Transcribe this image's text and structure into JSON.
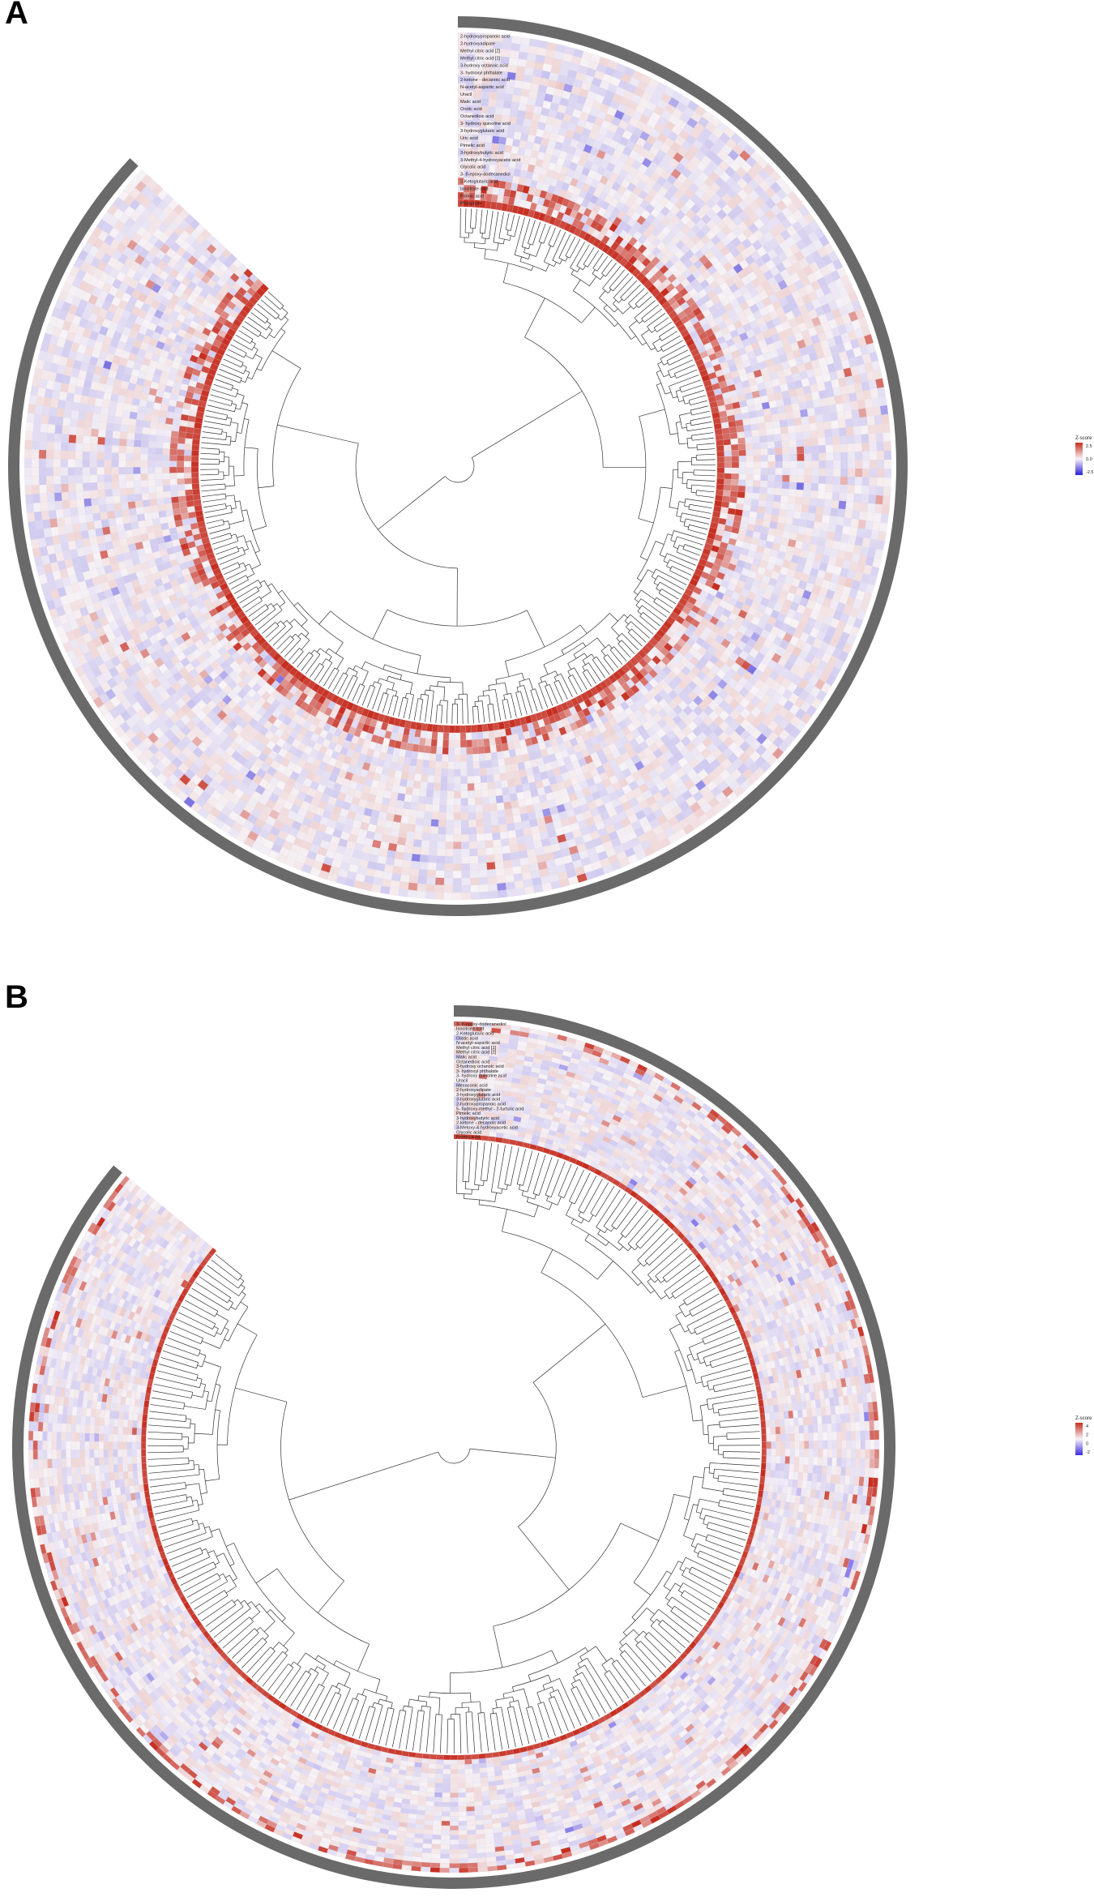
{
  "panels": [
    {
      "letter": "A",
      "legend": {
        "title": "Z-score",
        "ticks": [
          "2.5",
          "0.0",
          "-2.5"
        ]
      },
      "colors": {
        "high": "#c62d1f",
        "mid": "#f7f3f6",
        "low": "#2b1fd6",
        "branch": "#333333",
        "label_band": "#6a6a6a"
      },
      "row_labels": [
        "2-hydroxypropanoic acid",
        "2-hydroxyadipate",
        "Methyl citric acid [2]",
        "Methyl citric acid [1]",
        "3-hydroxy octanoic acid",
        "3- hydroxyl phthalate",
        "2-ketone - decanoic acid",
        "N-acetyl-aspartic acid",
        "Uracil",
        "Malic acid",
        "Orotic acid",
        "Octanedioic acid",
        "3- hydroxy quinoline acid",
        "3-hydroxyglutaric acid",
        "Uric acid",
        "Pimelic acid",
        "3-hydroxybutyric acid",
        "3-Methyl-4-hydroxyacetic acid",
        "Glycolic acid",
        "3- 8-epoxy-dodecanediol",
        "2-Ketoglutaric acid",
        "Isocitrate acid",
        "Formic acid",
        "Phosphate"
      ]
    },
    {
      "letter": "B",
      "legend": {
        "title": "Z-score",
        "ticks": [
          "4",
          "2",
          "0",
          "-2"
        ]
      },
      "colors": {
        "high": "#c62d1f",
        "mid": "#f7f3f6",
        "low": "#3b2be0",
        "branch": "#333333",
        "label_band": "#6a6a6a"
      },
      "row_labels": [
        "3- 8-epoxy-dodecanediol",
        "Isocitrate acid",
        "2-Ketoglutaric acid",
        "Orotic acid",
        "N-acetyl-aspartic acid",
        "Methyl citric acid [1]",
        "Methyl citric acid [2]",
        "Malic acid",
        "Octanedioic acid",
        "3-hydroxy octanoic acid",
        "3- hydroxyl phthalate",
        "3- hydroxy quinoline acid",
        "Uracil",
        "Mesaconic acid",
        "2-hydroxyadipate",
        "3-hydroxyglutaric acid",
        "3-hydroxyglutaric acid",
        "2-hydroxypropanoic acid",
        "5- hydroxy-methyl - 2-furfuric acid",
        "Pimelic acid",
        "3-hydroxybutyric acid",
        "2-ketone - decanoic acid",
        "3-Metoxy-4-hydroxyacetic acid",
        "Glycolic acid",
        "Formic acid"
      ]
    }
  ]
}
